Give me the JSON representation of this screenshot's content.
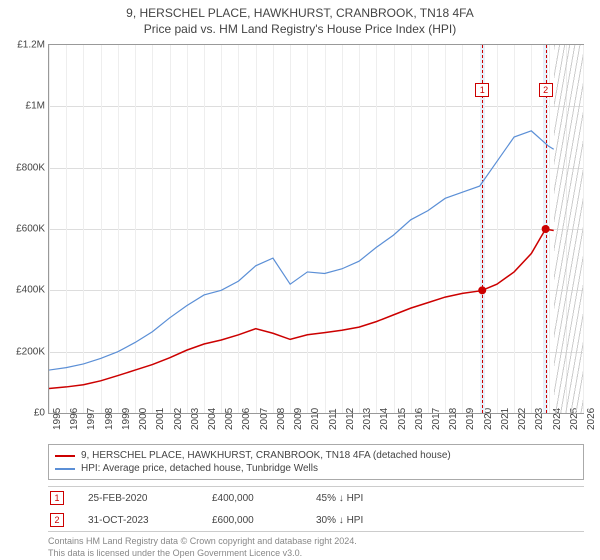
{
  "title": "9, HERSCHEL PLACE, HAWKHURST, CRANBROOK, TN18 4FA",
  "subtitle": "Price paid vs. HM Land Registry's House Price Index (HPI)",
  "chart": {
    "type": "line",
    "background_color": "#ffffff",
    "grid_color": "#dddddd",
    "border_color": "#999999",
    "ylim": [
      0,
      1200000
    ],
    "y_ticks": [
      0,
      200000,
      400000,
      600000,
      800000,
      1000000,
      1200000
    ],
    "y_tick_labels": [
      "£0",
      "£200K",
      "£400K",
      "£600K",
      "£800K",
      "£1M",
      "£1.2M"
    ],
    "xlim": [
      1995,
      2026
    ],
    "x_ticks": [
      1995,
      1996,
      1997,
      1998,
      1999,
      2000,
      2001,
      2002,
      2003,
      2004,
      2005,
      2006,
      2007,
      2008,
      2009,
      2010,
      2011,
      2012,
      2013,
      2014,
      2015,
      2016,
      2017,
      2018,
      2019,
      2020,
      2021,
      2022,
      2023,
      2024,
      2025,
      2026
    ],
    "x_tick_labels": [
      "1995",
      "1996",
      "1997",
      "1998",
      "1999",
      "2000",
      "2001",
      "2002",
      "2003",
      "2004",
      "2005",
      "2006",
      "2007",
      "2008",
      "2009",
      "2010",
      "2011",
      "2012",
      "2013",
      "2014",
      "2015",
      "2016",
      "2017",
      "2018",
      "2019",
      "2020",
      "2021",
      "2022",
      "2023",
      "2024",
      "2025",
      "2026"
    ],
    "label_fontsize": 10,
    "series": [
      {
        "name": "price_paid",
        "label": "9, HERSCHEL PLACE, HAWKHURST, CRANBROOK, TN18 4FA (detached house)",
        "color": "#cc0000",
        "line_width": 1.5,
        "x": [
          1995,
          1996,
          1997,
          1998,
          1999,
          2000,
          2001,
          2002,
          2003,
          2004,
          2005,
          2006,
          2007,
          2008,
          2009,
          2010,
          2011,
          2012,
          2013,
          2014,
          2015,
          2016,
          2017,
          2018,
          2019,
          2020,
          2020.15,
          2021,
          2022,
          2023,
          2023.83,
          2024,
          2024.3
        ],
        "y": [
          80000,
          85000,
          92000,
          105000,
          122000,
          140000,
          158000,
          180000,
          205000,
          225000,
          238000,
          255000,
          275000,
          260000,
          240000,
          255000,
          262000,
          270000,
          280000,
          298000,
          320000,
          342000,
          360000,
          378000,
          390000,
          398000,
          400000,
          420000,
          460000,
          520000,
          600000,
          598000,
          595000
        ],
        "markers": [
          {
            "idx": 26,
            "shape": "circle"
          },
          {
            "idx": 30,
            "shape": "circle"
          }
        ]
      },
      {
        "name": "hpi",
        "label": "HPI: Average price, detached house, Tunbridge Wells",
        "color": "#5b8fd6",
        "line_width": 1.2,
        "x": [
          1995,
          1996,
          1997,
          1998,
          1999,
          2000,
          2001,
          2002,
          2003,
          2004,
          2005,
          2006,
          2007,
          2008,
          2009,
          2010,
          2011,
          2012,
          2013,
          2014,
          2015,
          2016,
          2017,
          2018,
          2019,
          2020,
          2021,
          2022,
          2023,
          2024,
          2024.3
        ],
        "y": [
          140000,
          148000,
          160000,
          178000,
          200000,
          230000,
          265000,
          310000,
          350000,
          385000,
          400000,
          430000,
          480000,
          505000,
          420000,
          460000,
          455000,
          470000,
          495000,
          540000,
          580000,
          630000,
          660000,
          700000,
          720000,
          740000,
          820000,
          900000,
          920000,
          870000,
          860000
        ]
      }
    ],
    "event_markers": [
      {
        "id": "1",
        "x": 2020.15,
        "band_start": 2020.0,
        "band_end": 2020.3,
        "color": "#cc0000",
        "band_color": "#e8f0fa"
      },
      {
        "id": "2",
        "x": 2023.83,
        "band_start": 2023.68,
        "band_end": 2023.98,
        "color": "#cc0000",
        "band_color": "#e8f0fa"
      }
    ],
    "forecast_band": {
      "start": 2024.3,
      "end": 2026,
      "hatch_color": "#cccccc"
    }
  },
  "legend": {
    "items": [
      {
        "color": "#cc0000",
        "label": "9, HERSCHEL PLACE, HAWKHURST, CRANBROOK, TN18 4FA (detached house)"
      },
      {
        "color": "#5b8fd6",
        "label": "HPI: Average price, detached house, Tunbridge Wells"
      }
    ]
  },
  "markers_table": {
    "rows": [
      {
        "id": "1",
        "color": "#cc0000",
        "date": "25-FEB-2020",
        "price": "£400,000",
        "delta": "45% ↓ HPI"
      },
      {
        "id": "2",
        "color": "#cc0000",
        "date": "31-OCT-2023",
        "price": "£600,000",
        "delta": "30% ↓ HPI"
      }
    ]
  },
  "footer": {
    "line1": "Contains HM Land Registry data © Crown copyright and database right 2024.",
    "line2": "This data is licensed under the Open Government Licence v3.0."
  }
}
